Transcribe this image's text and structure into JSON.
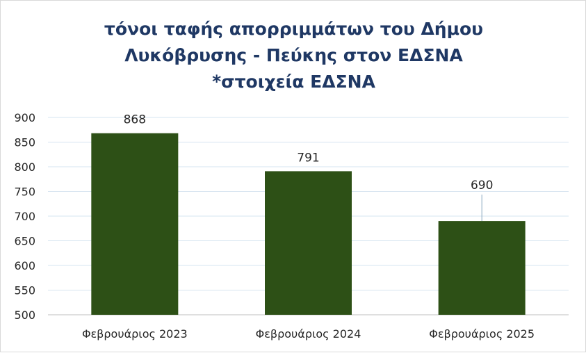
{
  "chart_data": {
    "type": "bar",
    "title": "τόνοι ταφής απορριμμάτων του Δήμου Λυκόβρυσης - Πεύκης στον ΕΔΣΝΑ *στοιχεία ΕΔΣΝΑ",
    "title_lines": [
      "τόνοι ταφής απορριμμάτων του Δήμου",
      "Λυκόβρυσης - Πεύκης στον ΕΔΣΝΑ",
      "*στοιχεία ΕΔΣΝΑ"
    ],
    "categories": [
      "Φεβρουάριος 2023",
      "Φεβρουάριος 2024",
      "Φεβρουάριος 2025"
    ],
    "values": [
      868,
      791,
      690
    ],
    "data_labels": [
      "868",
      "791",
      "690"
    ],
    "xlabel": "",
    "ylabel": "",
    "ylim": [
      500,
      900
    ],
    "yticks": [
      500,
      550,
      600,
      650,
      700,
      750,
      800,
      850,
      900
    ],
    "grid": true,
    "legend": "none",
    "colors": {
      "bar": "#2d5016",
      "title": "#1f3864",
      "grid": "#d6e4f0",
      "tick_text": "#262626"
    }
  }
}
